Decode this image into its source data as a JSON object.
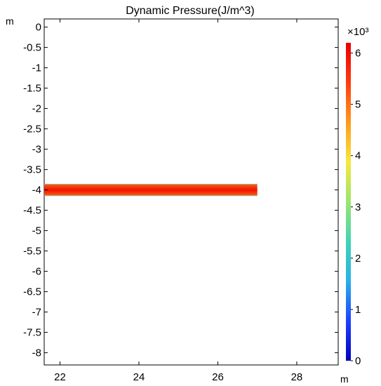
{
  "chart_data": {
    "type": "heatmap",
    "title": "Dynamic Pressure(J/m^3)",
    "x_unit": "m",
    "y_unit": "m",
    "xlim": [
      21.6,
      29.05
    ],
    "ylim": [
      -8.3,
      0.2
    ],
    "x_ticks": [
      22,
      24,
      26,
      28
    ],
    "x_tick_labels": [
      "22",
      "24",
      "26",
      "28"
    ],
    "y_ticks": [
      0,
      -0.5,
      -1,
      -1.5,
      -2,
      -2.5,
      -3,
      -3.5,
      -4,
      -4.5,
      -5,
      -5.5,
      -6,
      -6.5,
      -7,
      -7.5,
      -8
    ],
    "y_tick_labels": [
      "0",
      "-0.5",
      "-1",
      "-1.5",
      "-2",
      "-2.5",
      "-3",
      "-3.5",
      "-4",
      "-4.5",
      "-5",
      "-5.5",
      "-6",
      "-6.5",
      "-7",
      "-7.5",
      "-8"
    ],
    "field_region": {
      "x": [
        21.6,
        27.0
      ],
      "y": [
        -4.15,
        -3.85
      ],
      "value": 6000,
      "edge_value": 3000
    },
    "colorbar": {
      "min": 0,
      "max": 6200,
      "multiplier_label": "×10³",
      "ticks": [
        0,
        1000,
        2000,
        3000,
        4000,
        5000,
        6000
      ],
      "tick_labels": [
        "0",
        "1",
        "2",
        "3",
        "4",
        "5",
        "6"
      ],
      "colormap": [
        "#0000bb",
        "#1e40ff",
        "#2ab0e8",
        "#3fd4b4",
        "#9ae66e",
        "#f5e93c",
        "#ff9a1e",
        "#ff3a10",
        "#e80000"
      ]
    },
    "grid": false
  }
}
